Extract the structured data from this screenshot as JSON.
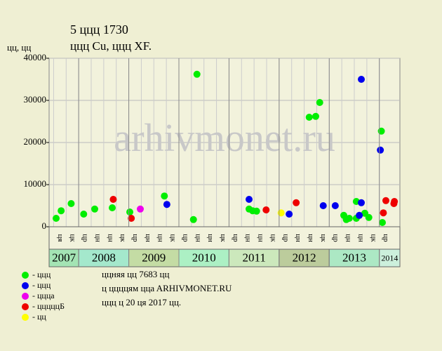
{
  "chart_data": {
    "type": "scatter",
    "title": "5 ццц 1730",
    "subtitle": "ццц Cu, ццц XF.",
    "y_label": "цц, цц",
    "watermark": "arhivmonet.ru",
    "xlim": [
      2007.41,
      2014.41
    ],
    "ylim": [
      0,
      40000
    ],
    "yticks": [
      0,
      10000,
      20000,
      30000,
      40000
    ],
    "xticks": [
      2008,
      2009,
      2010,
      2011,
      2012,
      2013,
      2014
    ],
    "grid": true,
    "years": [
      "2007",
      "2008",
      "2009",
      "2010",
      "2011",
      "2012",
      "2013",
      "2014"
    ],
    "year_colors": [
      "#a4e4b4",
      "#a4e8cc",
      "#c4dca4",
      "#acf0c4",
      "#cce8bc",
      "#bccc9c",
      "#ace8c4",
      "#ccf0dc"
    ],
    "quarter_labels": [
      "ця",
      "цк",
      "цр",
      "цн",
      "цн",
      "цк",
      "цр",
      "цн",
      "цн",
      "цк",
      "цр",
      "цн",
      "цн",
      "цк",
      "цр",
      "цн",
      "цн",
      "цк",
      "цр",
      "цн",
      "цн",
      "цк",
      "цр",
      "цн",
      "цн",
      "цк",
      "цр"
    ],
    "series": [
      {
        "name": "- ццц",
        "color": "#00ee00",
        "x": [
          2007.55,
          2007.65,
          2007.85,
          2008.1,
          2008.32,
          2008.67,
          2009.02,
          2009.71,
          2010.29,
          2010.36,
          2011.4,
          2011.47,
          2011.55,
          2012.6,
          2012.73,
          2012.81,
          2013.29,
          2013.34,
          2013.4,
          2013.54,
          2013.54,
          2013.71,
          2013.79,
          2014.04,
          2014.06
        ],
        "values": [
          2000,
          3800,
          5500,
          3000,
          4200,
          4500,
          3500,
          7300,
          1700,
          36200,
          4200,
          3800,
          3700,
          26000,
          26200,
          29500,
          2700,
          1700,
          2000,
          6000,
          2000,
          3200,
          2200,
          22700,
          1000
        ]
      },
      {
        "name": "- ццц",
        "color": "#0000ee",
        "x": [
          2009.76,
          2011.4,
          2012.2,
          2012.88,
          2013.12,
          2013.6,
          2013.64,
          2013.64,
          2014.02
        ],
        "values": [
          5300,
          6500,
          3000,
          5000,
          5000,
          2700,
          5700,
          35000,
          18200
        ]
      },
      {
        "name": "- ццца",
        "color": "#ee00ee",
        "x": [
          2009.23
        ],
        "values": [
          4200
        ]
      },
      {
        "name": "- цццццБ",
        "color": "#ee0000",
        "x": [
          2008.69,
          2009.05,
          2011.74,
          2012.34,
          2014.08,
          2014.13,
          2014.29,
          2014.3
        ],
        "values": [
          6500,
          2000,
          4000,
          5700,
          3300,
          6200,
          5500,
          6000
        ]
      },
      {
        "name": "- цц",
        "color": "#ffff00",
        "x": [
          2012.04
        ],
        "values": [
          3300
        ]
      }
    ],
    "notes": [
      "ццняя цц 7683 цц",
      "ц ццццям ццa ARHIVMONET.RU",
      "ццц ц 20 ця 2017 цц."
    ]
  }
}
